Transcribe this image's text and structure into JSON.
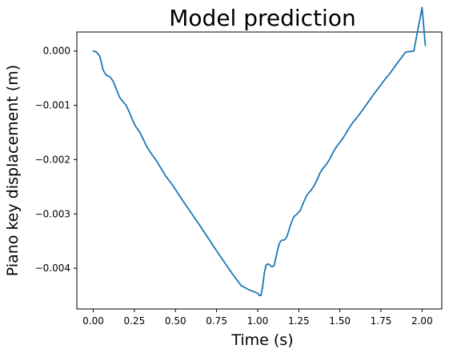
{
  "chart_data": {
    "type": "line",
    "title": "Model prediction",
    "xlabel": "Time (s)",
    "ylabel": "Piano key displacement (m)",
    "xlim": [
      -0.1,
      2.12
    ],
    "ylim": [
      -0.00475,
      0.00035
    ],
    "xticks": [
      {
        "value": 0.0,
        "label": "0.00"
      },
      {
        "value": 0.25,
        "label": "0.25"
      },
      {
        "value": 0.5,
        "label": "0.50"
      },
      {
        "value": 0.75,
        "label": "0.75"
      },
      {
        "value": 1.0,
        "label": "1.00"
      },
      {
        "value": 1.25,
        "label": "1.25"
      },
      {
        "value": 1.5,
        "label": "1.50"
      },
      {
        "value": 1.75,
        "label": "1.75"
      },
      {
        "value": 2.0,
        "label": "2.00"
      }
    ],
    "yticks": [
      {
        "value": 0.0,
        "label": "0.000"
      },
      {
        "value": -0.001,
        "label": "−0.001"
      },
      {
        "value": -0.002,
        "label": "−0.002"
      },
      {
        "value": -0.003,
        "label": "−0.003"
      },
      {
        "value": -0.004,
        "label": "−0.004"
      }
    ],
    "grid": false,
    "series": [
      {
        "color": "#1f77b4",
        "x": [
          0.0,
          0.02,
          0.04,
          0.06,
          0.08,
          0.1,
          0.12,
          0.14,
          0.16,
          0.18,
          0.2,
          0.22,
          0.24,
          0.26,
          0.28,
          0.3,
          0.32,
          0.34,
          0.36,
          0.38,
          0.4,
          0.42,
          0.44,
          0.46,
          0.48,
          0.5,
          0.55,
          0.6,
          0.65,
          0.7,
          0.75,
          0.8,
          0.85,
          0.9,
          0.95,
          1.0,
          1.01,
          1.02,
          1.03,
          1.04,
          1.05,
          1.06,
          1.07,
          1.08,
          1.09,
          1.1,
          1.11,
          1.12,
          1.13,
          1.14,
          1.15,
          1.16,
          1.17,
          1.18,
          1.19,
          1.2,
          1.22,
          1.24,
          1.26,
          1.28,
          1.3,
          1.32,
          1.34,
          1.36,
          1.38,
          1.4,
          1.42,
          1.44,
          1.46,
          1.48,
          1.5,
          1.52,
          1.54,
          1.56,
          1.58,
          1.6,
          1.62,
          1.64,
          1.66,
          1.68,
          1.7,
          1.72,
          1.74,
          1.76,
          1.78,
          1.8,
          1.85,
          1.9,
          1.95,
          2.0,
          2.02
        ],
        "y": [
          0.0,
          -2e-05,
          -0.0001,
          -0.00035,
          -0.00045,
          -0.00047,
          -0.00055,
          -0.0007,
          -0.00085,
          -0.00093,
          -0.001,
          -0.00113,
          -0.00128,
          -0.0014,
          -0.00148,
          -0.0016,
          -0.00173,
          -0.00183,
          -0.00192,
          -0.002,
          -0.0021,
          -0.0022,
          -0.0023,
          -0.00238,
          -0.00246,
          -0.00255,
          -0.00278,
          -0.003,
          -0.00322,
          -0.00345,
          -0.00368,
          -0.0039,
          -0.00412,
          -0.00432,
          -0.0044,
          -0.00446,
          -0.0045,
          -0.0045,
          -0.00435,
          -0.0041,
          -0.00395,
          -0.00392,
          -0.00393,
          -0.00396,
          -0.00397,
          -0.00395,
          -0.00382,
          -0.00368,
          -0.00356,
          -0.0035,
          -0.00348,
          -0.00348,
          -0.00346,
          -0.0034,
          -0.0033,
          -0.0032,
          -0.00305,
          -0.003,
          -0.00293,
          -0.00278,
          -0.00265,
          -0.00258,
          -0.0025,
          -0.00238,
          -0.00224,
          -0.00215,
          -0.00208,
          -0.00198,
          -0.00186,
          -0.00176,
          -0.00168,
          -0.0016,
          -0.0015,
          -0.0014,
          -0.00131,
          -0.00124,
          -0.00116,
          -0.00108,
          -0.00099,
          -0.00091,
          -0.00082,
          -0.00074,
          -0.00066,
          -0.00058,
          -0.0005,
          -0.00043,
          -0.00022,
          -2e-05,
          0.0,
          0.0008,
          0.0001
        ]
      }
    ]
  }
}
